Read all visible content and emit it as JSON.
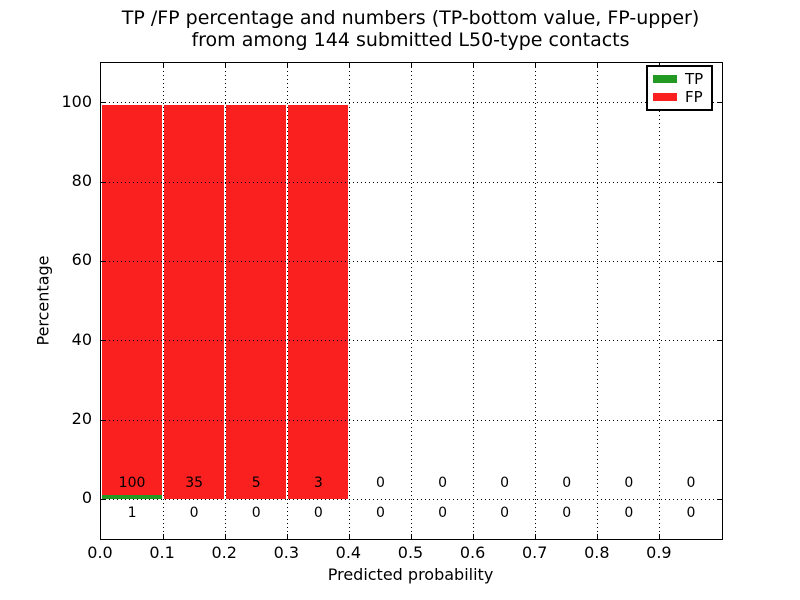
{
  "title": {
    "line1": "TP /FP percentage and numbers (TP-bottom value, FP-upper)",
    "line2": "from among 144 submitted L50-type contacts"
  },
  "chart_data": {
    "type": "bar",
    "stacked": true,
    "title": "TP /FP percentage and numbers (TP-bottom value, FP-upper) from among 144 submitted L50-type contacts",
    "xlabel": "Predicted probability",
    "ylabel": "Percentage",
    "xlim": [
      0.0,
      1.0
    ],
    "ylim": [
      -10,
      110
    ],
    "bin_width": 0.1,
    "grid": "dotted",
    "x_ticks": [
      "0.0",
      "0.1",
      "0.2",
      "0.3",
      "0.4",
      "0.5",
      "0.6",
      "0.7",
      "0.8",
      "0.9"
    ],
    "y_ticks": [
      0,
      20,
      40,
      60,
      80,
      100
    ],
    "categories": [
      "0.0-0.1",
      "0.1-0.2",
      "0.2-0.3",
      "0.3-0.4",
      "0.4-0.5",
      "0.5-0.6",
      "0.6-0.7",
      "0.7-0.8",
      "0.8-0.9",
      "0.9-1.0"
    ],
    "series": [
      {
        "name": "TP",
        "color": "#229922",
        "counts": [
          1,
          0,
          0,
          0,
          0,
          0,
          0,
          0,
          0,
          0
        ],
        "percent": [
          0.99,
          0,
          0,
          0,
          0,
          0,
          0,
          0,
          0,
          0
        ]
      },
      {
        "name": "FP",
        "color": "#fb2020",
        "counts": [
          100,
          35,
          5,
          3,
          0,
          0,
          0,
          0,
          0,
          0
        ],
        "percent": [
          99.01,
          100,
          100,
          100,
          0,
          0,
          0,
          0,
          0,
          0
        ]
      }
    ],
    "legend": {
      "position": "upper right",
      "entries": [
        {
          "label": "TP",
          "color": "#229922"
        },
        {
          "label": "FP",
          "color": "#fb2020"
        }
      ]
    }
  }
}
